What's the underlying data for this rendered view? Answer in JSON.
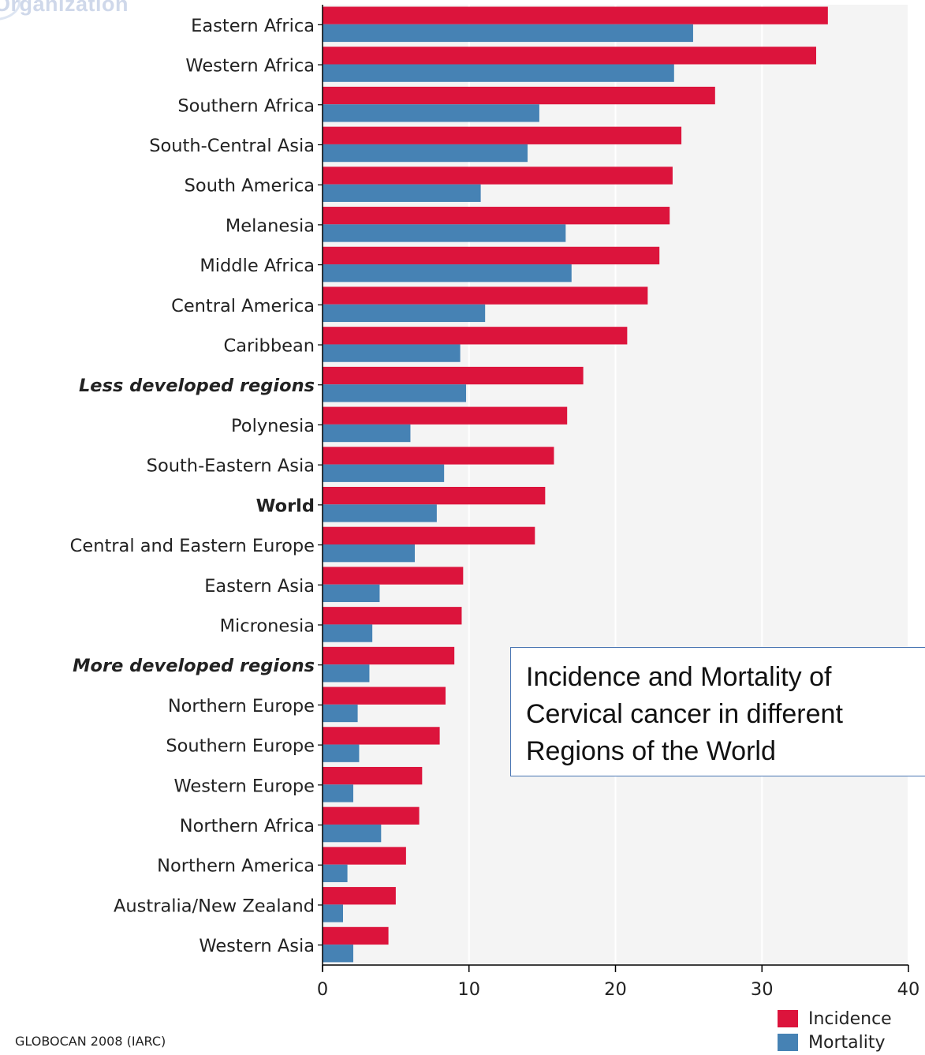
{
  "watermark": {
    "text": "Organization"
  },
  "annotation": {
    "text": "Incidence and Mortality of\nCervical cancer in different\nRegions of the World"
  },
  "source": "GLOBOCAN 2008 (IARC)",
  "colors": {
    "incidence": "#dc143c",
    "mortality": "#4682b4",
    "plot_bg": "#f4f4f4",
    "grid": "#ffffff",
    "axis": "#000000"
  },
  "chart_data": {
    "type": "bar",
    "orientation": "horizontal",
    "title": "",
    "xlabel": "",
    "ylabel": "",
    "xlim": [
      0,
      40
    ],
    "xticks": [
      0,
      10,
      20,
      30,
      40
    ],
    "legend_position": "bottom-right",
    "categories": [
      "Eastern Africa",
      "Western Africa",
      "Southern Africa",
      "South-Central Asia",
      "South America",
      "Melanesia",
      "Middle Africa",
      "Central America",
      "Caribbean",
      "Less developed regions",
      "Polynesia",
      "South-Eastern Asia",
      "World",
      "Central and Eastern Europe",
      "Eastern Asia",
      "Micronesia",
      "More developed regions",
      "Northern Europe",
      "Southern Europe",
      "Western Europe",
      "Northern Africa",
      "Northern America",
      "Australia/New Zealand",
      "Western Asia"
    ],
    "emphasis": {
      "Less developed regions": "bold-italic",
      "World": "bold",
      "More developed regions": "bold-italic"
    },
    "series": [
      {
        "name": "Incidence",
        "color": "#dc143c",
        "values": [
          34.5,
          33.7,
          26.8,
          24.5,
          23.9,
          23.7,
          23.0,
          22.2,
          20.8,
          17.8,
          16.7,
          15.8,
          15.2,
          14.5,
          9.6,
          9.5,
          9.0,
          8.4,
          8.0,
          6.8,
          6.6,
          5.7,
          5.0,
          4.5
        ]
      },
      {
        "name": "Mortality",
        "color": "#4682b4",
        "values": [
          25.3,
          24.0,
          14.8,
          14.0,
          10.8,
          16.6,
          17.0,
          11.1,
          9.4,
          9.8,
          6.0,
          8.3,
          7.8,
          6.3,
          3.9,
          3.4,
          3.2,
          2.4,
          2.5,
          2.1,
          4.0,
          1.7,
          1.4,
          2.1
        ]
      }
    ]
  }
}
